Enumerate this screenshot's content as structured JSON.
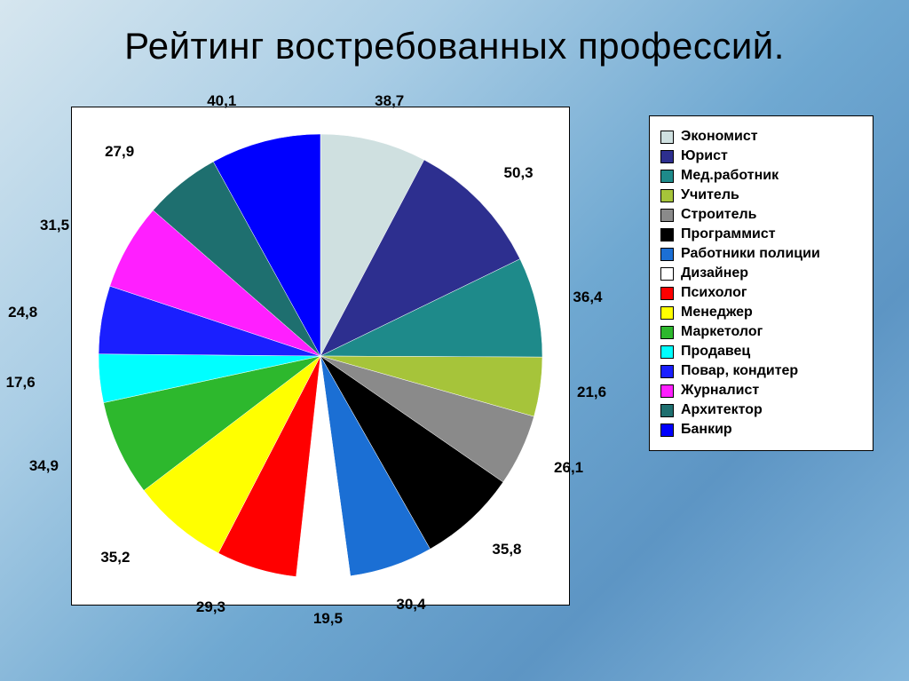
{
  "title": "Рейтинг востребованных профессий.",
  "chart": {
    "type": "pie",
    "background_color": "#ffffff",
    "border_color": "#000000",
    "radius": 250,
    "start_angle_deg": -90,
    "label_fontsize": 17,
    "label_fontweight": "600",
    "slices": [
      {
        "label": "Экономист",
        "value": 38.7,
        "color": "#cfe0e0",
        "display": "38,7"
      },
      {
        "label": "Юрист",
        "value": 50.3,
        "color": "#2d2f8f",
        "display": "50,3"
      },
      {
        "label": "Мед.работник",
        "value": 36.4,
        "color": "#1e8a8a",
        "display": "36,4"
      },
      {
        "label": "Учитель",
        "value": 21.6,
        "color": "#a6c43a",
        "display": "21,6"
      },
      {
        "label": "Строитель",
        "value": 26.1,
        "color": "#8a8a8a",
        "display": "26,1"
      },
      {
        "label": "Программист",
        "value": 35.8,
        "color": "#000000",
        "display": "35,8"
      },
      {
        "label": "Работники полиции",
        "value": 30.4,
        "color": "#1b6fd4",
        "display": "30,4"
      },
      {
        "label": "Дизайнер",
        "value": 19.5,
        "color": "#ffffff",
        "display": "19,5"
      },
      {
        "label": "Психолог",
        "value": 29.3,
        "color": "#ff0000",
        "display": "29,3"
      },
      {
        "label": "Менеджер",
        "value": 35.2,
        "color": "#ffff00",
        "display": "35,2"
      },
      {
        "label": "Маркетолог",
        "value": 34.9,
        "color": "#2db82d",
        "display": "34,9"
      },
      {
        "label": "Продавец",
        "value": 17.6,
        "color": "#00ffff",
        "display": "17,6"
      },
      {
        "label": "Повар, кондитер",
        "value": 24.8,
        "color": "#1a1fff",
        "display": "24,8"
      },
      {
        "label": "Журналист",
        "value": 31.5,
        "color": "#ff1fff",
        "display": "31,5"
      },
      {
        "label": "Архитектор",
        "value": 27.9,
        "color": "#1e6f6f",
        "display": "27,9"
      },
      {
        "label": "Банкир",
        "value": 40.1,
        "color": "#0000ff",
        "display": "40,1"
      }
    ]
  },
  "legend": {
    "swatch_border": "#000000",
    "fontsize": 16,
    "fontweight": "600"
  },
  "page_bg_gradient": [
    "#d6e6ef",
    "#a9cde5",
    "#6fa8d1",
    "#5d95c4",
    "#84b7dc"
  ]
}
